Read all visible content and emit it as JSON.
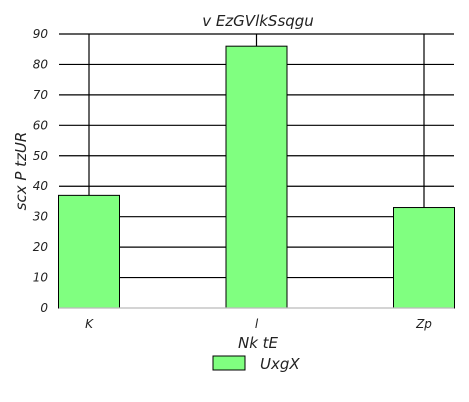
{
  "chart_data": {
    "type": "bar",
    "title": "v EzGVlkSsqgu",
    "xlabel": "Nk tE",
    "ylabel": "scx  P tzUR",
    "categories": [
      "K",
      "l",
      "Zp"
    ],
    "series": [
      {
        "name": "UxgX",
        "values": [
          37,
          86,
          33
        ]
      }
    ],
    "ylim": [
      0,
      90
    ],
    "yticks": [
      0,
      10,
      20,
      30,
      40,
      50,
      60,
      70,
      80,
      90
    ],
    "grid": true,
    "legend": "bottom-center",
    "colors": {
      "bar_fill": "#80ff80",
      "bar_stroke": "#000000",
      "grid": "#000000",
      "axis": "#bbbbbb"
    }
  }
}
